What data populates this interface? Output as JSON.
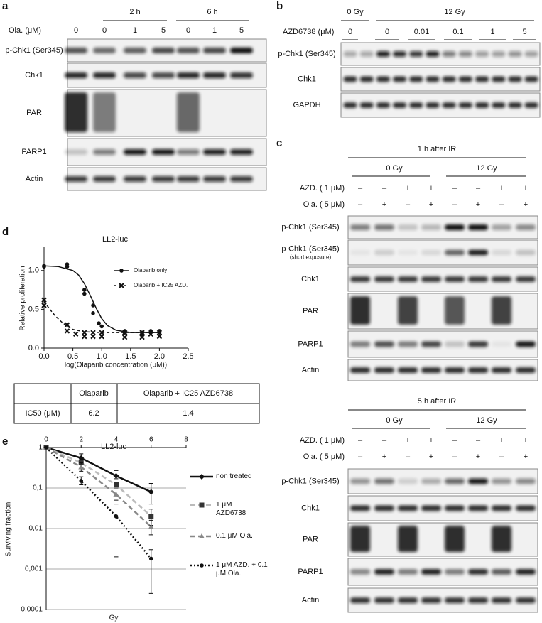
{
  "panel_a": {
    "label": "a",
    "groups": [
      "2 h",
      "6 h"
    ],
    "conc_label": "Ola. (μM)",
    "lanes": [
      "0",
      "0",
      "1",
      "5",
      "0",
      "1",
      "5"
    ],
    "rows": [
      "p-Chk1 (Ser345)",
      "Chk1",
      "PAR",
      "PARP1",
      "Actin"
    ]
  },
  "panel_b": {
    "label": "b",
    "groups": [
      "0 Gy",
      "12 Gy"
    ],
    "conc_label": "AZD6738 (μM)",
    "concs": [
      "0",
      "0",
      "0.01",
      "0.1",
      "1",
      "5"
    ],
    "rows": [
      "p-Chk1 (Ser345)",
      "Chk1",
      "GAPDH"
    ]
  },
  "panel_c": {
    "label": "c",
    "blocks": [
      {
        "title": "1 h after IR",
        "groups": [
          "0 Gy",
          "12 Gy"
        ],
        "treatments": [
          {
            "name": "AZD. ( 1 μM)",
            "signs": [
              "–",
              "–",
              "+",
              "+",
              "–",
              "–",
              "+",
              "+"
            ]
          },
          {
            "name": "Ola. ( 5 μM)",
            "signs": [
              "–",
              "+",
              "–",
              "+",
              "–",
              "+",
              "–",
              "+"
            ]
          }
        ],
        "rows": [
          "p-Chk1 (Ser345)",
          "p-Chk1 (Ser345)",
          "Chk1",
          "PAR",
          "PARP1",
          "Actin"
        ],
        "row_note": "(short exposure)"
      },
      {
        "title": "5 h after IR",
        "groups": [
          "0 Gy",
          "12 Gy"
        ],
        "treatments": [
          {
            "name": "AZD. ( 1 μM)",
            "signs": [
              "–",
              "–",
              "+",
              "+",
              "–",
              "–",
              "+",
              "+"
            ]
          },
          {
            "name": "Ola. ( 5 μM)",
            "signs": [
              "–",
              "+",
              "–",
              "+",
              "–",
              "+",
              "–",
              "+"
            ]
          }
        ],
        "rows": [
          "p-Chk1 (Ser345)",
          "Chk1",
          "PAR",
          "PARP1",
          "Actin"
        ]
      }
    ]
  },
  "panel_d": {
    "label": "d",
    "table": {
      "header": [
        "Olaparib",
        "Olaparib + IC25 AZD6738"
      ],
      "rows": [
        [
          "IC50 (μM)",
          "6.2",
          "1.4"
        ]
      ]
    }
  },
  "panel_e": {
    "label": "e"
  },
  "chart_data": [
    {
      "type": "scatter",
      "title": "LL2-luc",
      "x_label": "log(Olaparib concentration (μM))",
      "y_label": "Relative proliferation",
      "xlim": [
        0,
        2.5
      ],
      "xticks": [
        {
          "value": 0,
          "label": "0.0"
        },
        {
          "value": 0.5,
          "label": "0.5"
        },
        {
          "value": 1,
          "label": "1.0"
        },
        {
          "value": 1.5,
          "label": "1.5"
        },
        {
          "value": 2,
          "label": "2.0"
        },
        {
          "value": 2.5,
          "label": "2.5"
        }
      ],
      "ylim": [
        0,
        1.3
      ],
      "yticks": [
        {
          "value": 0,
          "label": "0.0"
        },
        {
          "value": 0.5,
          "label": "0.5"
        },
        {
          "value": 1,
          "label": "1.0"
        }
      ],
      "series": [
        {
          "name": "Olaparib only",
          "color": "#111111",
          "marker": "circle",
          "dash": "none",
          "x": [
            0,
            0,
            0.4,
            0.4,
            0.7,
            0.7,
            0.85,
            0.85,
            0.95,
            1.0,
            1.4,
            1.4,
            1.7,
            1.7,
            1.85,
            1.85,
            2,
            2
          ],
          "values": [
            1.05,
            1.06,
            1.08,
            1.05,
            0.75,
            0.7,
            0.55,
            0.45,
            0.32,
            0.28,
            0.22,
            0.2,
            0.2,
            0.18,
            0.22,
            0.2,
            0.2,
            0.22
          ],
          "curve": {
            "x": [
              0,
              0.25,
              0.5,
              0.6,
              0.7,
              0.8,
              0.9,
              1.0,
              1.1,
              1.25,
              1.5,
              1.75,
              2
            ],
            "values": [
              1.06,
              1.05,
              1.0,
              0.94,
              0.83,
              0.68,
              0.52,
              0.38,
              0.29,
              0.23,
              0.2,
              0.2,
              0.2
            ]
          }
        },
        {
          "name": "Olaparib + IC25 AZD.",
          "color": "#111111",
          "marker": "cross",
          "dash": "4,3",
          "x": [
            0,
            0,
            0.4,
            0.4,
            0.55,
            0.7,
            0.7,
            0.85,
            0.85,
            1,
            1,
            1.4,
            1.4,
            1.7,
            1.7,
            1.85,
            2,
            2
          ],
          "values": [
            0.62,
            0.55,
            0.3,
            0.22,
            0.18,
            0.2,
            0.15,
            0.2,
            0.15,
            0.2,
            0.15,
            0.2,
            0.14,
            0.2,
            0.14,
            0.18,
            0.2,
            0.15
          ],
          "curve": {
            "x": [
              0,
              0.1,
              0.2,
              0.3,
              0.4,
              0.5,
              0.7,
              1,
              1.5,
              2
            ],
            "values": [
              0.6,
              0.5,
              0.41,
              0.34,
              0.28,
              0.24,
              0.21,
              0.2,
              0.2,
              0.2
            ]
          }
        }
      ]
    },
    {
      "type": "line",
      "title": "LL2-luc",
      "x_label": "Gy",
      "y_label": "Surviving fraction",
      "log_y": true,
      "grid": true,
      "xlim": [
        0,
        8
      ],
      "xticks": [
        0,
        2,
        4,
        6,
        8
      ],
      "ylim": [
        0.0001,
        1
      ],
      "yticks": [
        1,
        {
          "value": 0.1,
          "label": "0,1"
        },
        {
          "value": 0.01,
          "label": "0,01"
        },
        {
          "value": 0.001,
          "label": "0,001"
        },
        {
          "value": 0.0001,
          "label": "0,0001"
        }
      ],
      "series": [
        {
          "name": "non treated",
          "color": "#111111",
          "dash": "none",
          "width": 2.5,
          "marker": "diamond",
          "x": [
            0,
            2,
            4,
            6
          ],
          "values": [
            1,
            0.55,
            0.2,
            0.08
          ],
          "err_lo": [
            1,
            0.42,
            0.14,
            0.04
          ],
          "err_hi": [
            1,
            0.7,
            0.27,
            0.13
          ]
        },
        {
          "name": "1 μM AZD6738",
          "color": "#bbbbbb",
          "dash": "7,4",
          "width": 2.5,
          "marker": "square",
          "x": [
            0,
            2,
            4,
            6
          ],
          "values": [
            1,
            0.42,
            0.12,
            0.02
          ],
          "err_lo": [
            1,
            0.33,
            0.08,
            0.012
          ],
          "err_hi": [
            1,
            0.52,
            0.17,
            0.03
          ]
        },
        {
          "name": "0.1 μM Ola.",
          "color": "#888888",
          "dash": "7,4",
          "width": 2.5,
          "marker": "triangle",
          "x": [
            0,
            2,
            4,
            6
          ],
          "values": [
            1,
            0.33,
            0.07,
            0.011
          ],
          "err_lo": [
            1,
            0.26,
            0.04,
            0.007
          ],
          "err_hi": [
            1,
            0.42,
            0.1,
            0.016
          ]
        },
        {
          "name": "1 μM AZD. + 0.1 μM Ola.",
          "color": "#111111",
          "dash": "2,3",
          "width": 2.5,
          "marker": "circle",
          "x": [
            0,
            2,
            4,
            6
          ],
          "values": [
            1,
            0.15,
            0.02,
            0.0018
          ],
          "err_lo": [
            1,
            0.12,
            0.002,
            0.00025
          ],
          "err_hi": [
            1,
            0.19,
            0.05,
            0.003
          ]
        }
      ]
    }
  ]
}
